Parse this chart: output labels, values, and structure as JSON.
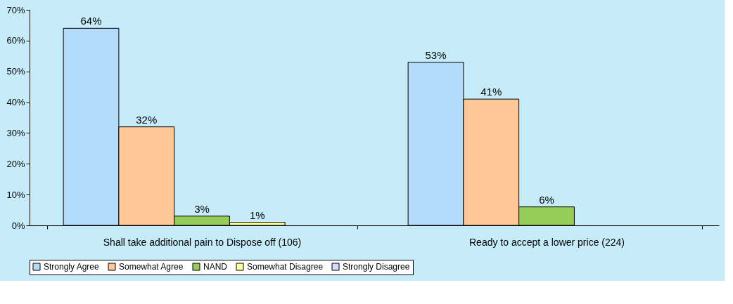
{
  "chart_data": {
    "type": "bar",
    "categories": [
      "Shall take additional pain to Dispose off (106)",
      "Ready to accept a lower price (224)"
    ],
    "series": [
      {
        "name": "Strongly Agree",
        "color": "#b4dcfa",
        "values": [
          64,
          53
        ],
        "value_labels": [
          "64%",
          "53%"
        ]
      },
      {
        "name": "Somewhat Agree",
        "color": "#ffc896",
        "values": [
          32,
          41
        ],
        "value_labels": [
          "32%",
          "41%"
        ]
      },
      {
        "name": "NAND",
        "color": "#96cd5a",
        "values": [
          3,
          6
        ],
        "value_labels": [
          "3%",
          "6%"
        ]
      },
      {
        "name": "Somewhat Disagree",
        "color": "#ffffa0",
        "values": [
          1,
          null
        ],
        "value_labels": [
          "1%",
          null
        ]
      },
      {
        "name": "Strongly Disagree",
        "color": "#d2dcff",
        "values": [
          null,
          null
        ],
        "value_labels": [
          null,
          null
        ]
      }
    ],
    "ylim": [
      0,
      70
    ],
    "yticks": [
      {
        "value": 0,
        "label": "0%"
      },
      {
        "value": 10,
        "label": "10%"
      },
      {
        "value": 20,
        "label": "20%"
      },
      {
        "value": 30,
        "label": "30%"
      },
      {
        "value": 40,
        "label": "40%"
      },
      {
        "value": 50,
        "label": "50%"
      },
      {
        "value": 60,
        "label": "60%"
      },
      {
        "value": 70,
        "label": "70%"
      }
    ],
    "grid": false,
    "legend": "bottom"
  }
}
